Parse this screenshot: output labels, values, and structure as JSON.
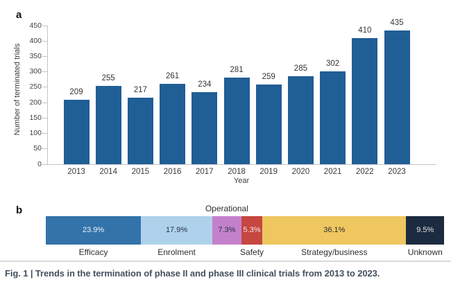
{
  "figure": {
    "panel_a_label": "a",
    "panel_b_label": "b",
    "caption": "Fig. 1 | Trends in the termination of phase II and phase III clinical trials from 2013 to 2023."
  },
  "colors": {
    "bar_blue": "#205e96",
    "axis_gray": "#c4c4c4",
    "divider_gray": "#d9d9d9",
    "caption_slate": "#44505f"
  },
  "chart_data": [
    {
      "type": "bar",
      "panel": "a",
      "title": "",
      "xlabel": "Year",
      "ylabel": "Number of terminated trials",
      "categories": [
        "2013",
        "2014",
        "2015",
        "2016",
        "2017",
        "2018",
        "2019",
        "2020",
        "2021",
        "2022",
        "2023"
      ],
      "values": [
        209,
        255,
        217,
        261,
        234,
        281,
        259,
        285,
        302,
        410,
        435
      ],
      "ylim": [
        0,
        450
      ],
      "ytick_step": 50,
      "grid": false,
      "legend": "none",
      "bar_color": "#205e96"
    },
    {
      "type": "stacked-bar",
      "panel": "b",
      "orientation": "horizontal",
      "segments": [
        {
          "label": "Efficacy",
          "value_label": "23.9%",
          "percent": 23.9,
          "color": "#3373aa",
          "text_color": "#f2f5f8",
          "label_position": "below"
        },
        {
          "label": "Enrolment",
          "value_label": "17.9%",
          "percent": 17.9,
          "color": "#aed2ec",
          "text_color": "#22304a",
          "label_position": "below"
        },
        {
          "label": "Operational",
          "value_label": "7.3%",
          "percent": 7.3,
          "color": "#c481cb",
          "text_color": "#22304a",
          "label_position": "above"
        },
        {
          "label": "Safety",
          "value_label": "5.3%",
          "percent": 5.3,
          "color": "#c64640",
          "text_color": "#f4e9e8",
          "label_position": "below"
        },
        {
          "label": "Strategy/business",
          "value_label": "36.1%",
          "percent": 36.1,
          "color": "#eec760",
          "text_color": "#2e2e2e",
          "label_position": "below"
        },
        {
          "label": "Unknown",
          "value_label": "9.5%",
          "percent": 9.5,
          "color": "#1d2b40",
          "text_color": "#dfe3e9",
          "label_position": "below"
        }
      ]
    }
  ]
}
